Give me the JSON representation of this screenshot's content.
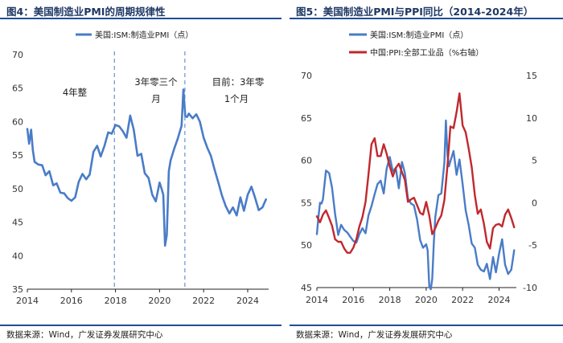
{
  "colors": {
    "ism": "#4a7cc7",
    "ppi": "#c0282d",
    "vline": "#4a7cc7",
    "rule": "#1f4e96",
    "title": "#1f3864"
  },
  "left": {
    "title": "图4：美国制造业PMI的周期规律性",
    "source": "数据来源：Wind，广发证券发展研究中心"
  },
  "right": {
    "title": "图5：美国制造业PMI与PPI同比（2014-2024年）",
    "source": "数据来源：Wind，广发证券发展研究中心"
  },
  "chart_data": [
    {
      "type": "line",
      "title": "图4：美国制造业PMI的周期规律性",
      "ylim": [
        35,
        70
      ],
      "yticks": [
        35,
        40,
        45,
        50,
        55,
        60,
        65,
        70
      ],
      "xlim": [
        2014,
        2024.95
      ],
      "xticks": [
        2014,
        2016,
        2018,
        2020,
        2022,
        2024
      ],
      "legend": "top-left",
      "series": [
        {
          "name": "美国:ISM:制造业PMI（点）",
          "x": [
            2014.0,
            2014.08,
            2014.17,
            2014.25,
            2014.33,
            2014.5,
            2014.67,
            2014.83,
            2015.0,
            2015.17,
            2015.33,
            2015.5,
            2015.67,
            2015.83,
            2016.0,
            2016.17,
            2016.33,
            2016.5,
            2016.67,
            2016.83,
            2017.0,
            2017.17,
            2017.33,
            2017.5,
            2017.67,
            2017.83,
            2018.0,
            2018.17,
            2018.33,
            2018.5,
            2018.67,
            2018.83,
            2019.0,
            2019.17,
            2019.33,
            2019.5,
            2019.67,
            2019.83,
            2020.0,
            2020.08,
            2020.17,
            2020.25,
            2020.33,
            2020.42,
            2020.5,
            2020.67,
            2020.83,
            2021.0,
            2021.08,
            2021.17,
            2021.25,
            2021.33,
            2021.5,
            2021.67,
            2021.83,
            2022.0,
            2022.17,
            2022.33,
            2022.5,
            2022.67,
            2022.83,
            2023.0,
            2023.17,
            2023.33,
            2023.5,
            2023.67,
            2023.83,
            2024.0,
            2024.17,
            2024.33,
            2024.5,
            2024.67,
            2024.83
          ],
          "y": [
            58.9,
            56.7,
            58.8,
            55.8,
            54.0,
            53.6,
            53.5,
            52.0,
            52.6,
            50.5,
            50.8,
            49.4,
            49.3,
            48.6,
            48.2,
            48.7,
            51.0,
            52.2,
            51.4,
            52.1,
            55.5,
            56.4,
            54.8,
            56.4,
            58.4,
            58.2,
            59.5,
            59.3,
            58.6,
            57.6,
            60.9,
            58.8,
            54.9,
            55.2,
            52.3,
            51.6,
            49.1,
            48.1,
            50.9,
            50.1,
            49.1,
            41.5,
            43.1,
            52.6,
            54.2,
            56.0,
            57.5,
            59.4,
            64.8,
            60.8,
            60.7,
            61.2,
            60.5,
            61.1,
            60.0,
            57.6,
            56.1,
            54.9,
            52.8,
            50.9,
            49.0,
            47.4,
            46.3,
            47.2,
            46.0,
            48.7,
            46.7,
            49.1,
            50.3,
            48.7,
            46.8,
            47.2,
            48.4
          ]
        }
      ],
      "vlines": [
        2017.95,
        2021.15
      ],
      "annotations": [
        "4年整",
        "3年零三个",
        "月",
        "目前：3年零",
        "1个月"
      ]
    },
    {
      "type": "line",
      "title": "图5：美国制造业PMI与PPI同比（2014-2024年）",
      "ylim": [
        45,
        70
      ],
      "yticks": [
        45,
        50,
        55,
        60,
        65,
        70
      ],
      "y2lim": [
        -10,
        15
      ],
      "y2ticks": [
        -10,
        -5,
        0,
        5,
        10,
        15
      ],
      "xlim": [
        2014,
        2024.95
      ],
      "xticks": [
        2014,
        2016,
        2018,
        2020,
        2022,
        2024
      ],
      "legend": "top-left",
      "series": [
        {
          "name": "美国:ISM:制造业PMI（点）",
          "axis": "left",
          "x": [
            2014.0,
            2014.08,
            2014.17,
            2014.25,
            2014.33,
            2014.5,
            2014.67,
            2014.83,
            2015.0,
            2015.17,
            2015.33,
            2015.5,
            2015.67,
            2015.83,
            2016.0,
            2016.17,
            2016.33,
            2016.5,
            2016.67,
            2016.83,
            2017.0,
            2017.17,
            2017.33,
            2017.5,
            2017.67,
            2017.83,
            2018.0,
            2018.17,
            2018.33,
            2018.5,
            2018.67,
            2018.83,
            2019.0,
            2019.17,
            2019.33,
            2019.5,
            2019.67,
            2019.83,
            2020.0,
            2020.08,
            2020.17,
            2020.25,
            2020.33,
            2020.42,
            2020.5,
            2020.67,
            2020.83,
            2021.0,
            2021.08,
            2021.17,
            2021.25,
            2021.33,
            2021.5,
            2021.67,
            2021.83,
            2022.0,
            2022.17,
            2022.33,
            2022.5,
            2022.67,
            2022.83,
            2023.0,
            2023.17,
            2023.33,
            2023.5,
            2023.67,
            2023.83,
            2024.0,
            2024.17,
            2024.33,
            2024.5,
            2024.67,
            2024.83
          ],
          "y": [
            51.3,
            53.2,
            55.0,
            54.9,
            55.4,
            58.8,
            58.5,
            56.8,
            53.7,
            51.2,
            52.4,
            51.8,
            51.5,
            51.0,
            50.5,
            50.3,
            51.3,
            52.0,
            51.4,
            53.5,
            54.6,
            56.0,
            57.2,
            57.6,
            56.1,
            59.0,
            60.4,
            58.7,
            59.1,
            56.7,
            59.8,
            58.5,
            55.5,
            54.9,
            54.7,
            53.0,
            50.6,
            49.7,
            50.1,
            49.4,
            45.2,
            44.8,
            46.0,
            50.3,
            53.3,
            55.9,
            56.1,
            59.7,
            64.7,
            60.6,
            59.3,
            59.9,
            61.1,
            58.3,
            60.1,
            57.2,
            54.1,
            52.4,
            50.2,
            49.7,
            47.7,
            47.1,
            46.9,
            47.8,
            46.0,
            48.6,
            46.8,
            49.0,
            50.7,
            47.7,
            46.6,
            47.1,
            49.4
          ]
        },
        {
          "name": "中国:PPI:全部工业品（%右轴）",
          "axis": "right",
          "x": [
            2014.0,
            2014.17,
            2014.33,
            2014.5,
            2014.67,
            2014.83,
            2015.0,
            2015.17,
            2015.33,
            2015.5,
            2015.67,
            2015.83,
            2016.0,
            2016.17,
            2016.33,
            2016.5,
            2016.67,
            2016.83,
            2017.0,
            2017.17,
            2017.33,
            2017.5,
            2017.67,
            2017.83,
            2018.0,
            2018.17,
            2018.33,
            2018.5,
            2018.67,
            2018.83,
            2019.0,
            2019.17,
            2019.33,
            2019.5,
            2019.67,
            2019.83,
            2020.0,
            2020.17,
            2020.33,
            2020.5,
            2020.67,
            2020.83,
            2021.0,
            2021.17,
            2021.33,
            2021.5,
            2021.67,
            2021.83,
            2022.0,
            2022.17,
            2022.33,
            2022.5,
            2022.67,
            2022.83,
            2023.0,
            2023.17,
            2023.33,
            2023.5,
            2023.67,
            2023.83,
            2024.0,
            2024.17,
            2024.33,
            2024.5,
            2024.67,
            2024.83
          ],
          "y": [
            -1.6,
            -2.3,
            -1.4,
            -0.9,
            -1.8,
            -2.7,
            -4.3,
            -4.6,
            -4.6,
            -5.4,
            -5.9,
            -5.9,
            -5.3,
            -4.3,
            -2.8,
            -1.7,
            0.1,
            3.3,
            6.9,
            7.6,
            5.5,
            5.5,
            6.9,
            5.8,
            4.3,
            3.1,
            4.1,
            4.6,
            3.6,
            2.7,
            0.1,
            0.4,
            0.6,
            -0.3,
            -1.2,
            -1.4,
            0.1,
            -1.5,
            -3.7,
            -3.0,
            -2.1,
            -1.5,
            0.3,
            4.4,
            9.0,
            8.8,
            10.7,
            12.9,
            9.1,
            8.3,
            6.4,
            4.2,
            0.9,
            -1.3,
            -0.8,
            -2.5,
            -4.6,
            -5.4,
            -3.0,
            -2.6,
            -2.5,
            -2.8,
            -1.4,
            -0.8,
            -1.8,
            -2.9
          ]
        }
      ]
    }
  ]
}
